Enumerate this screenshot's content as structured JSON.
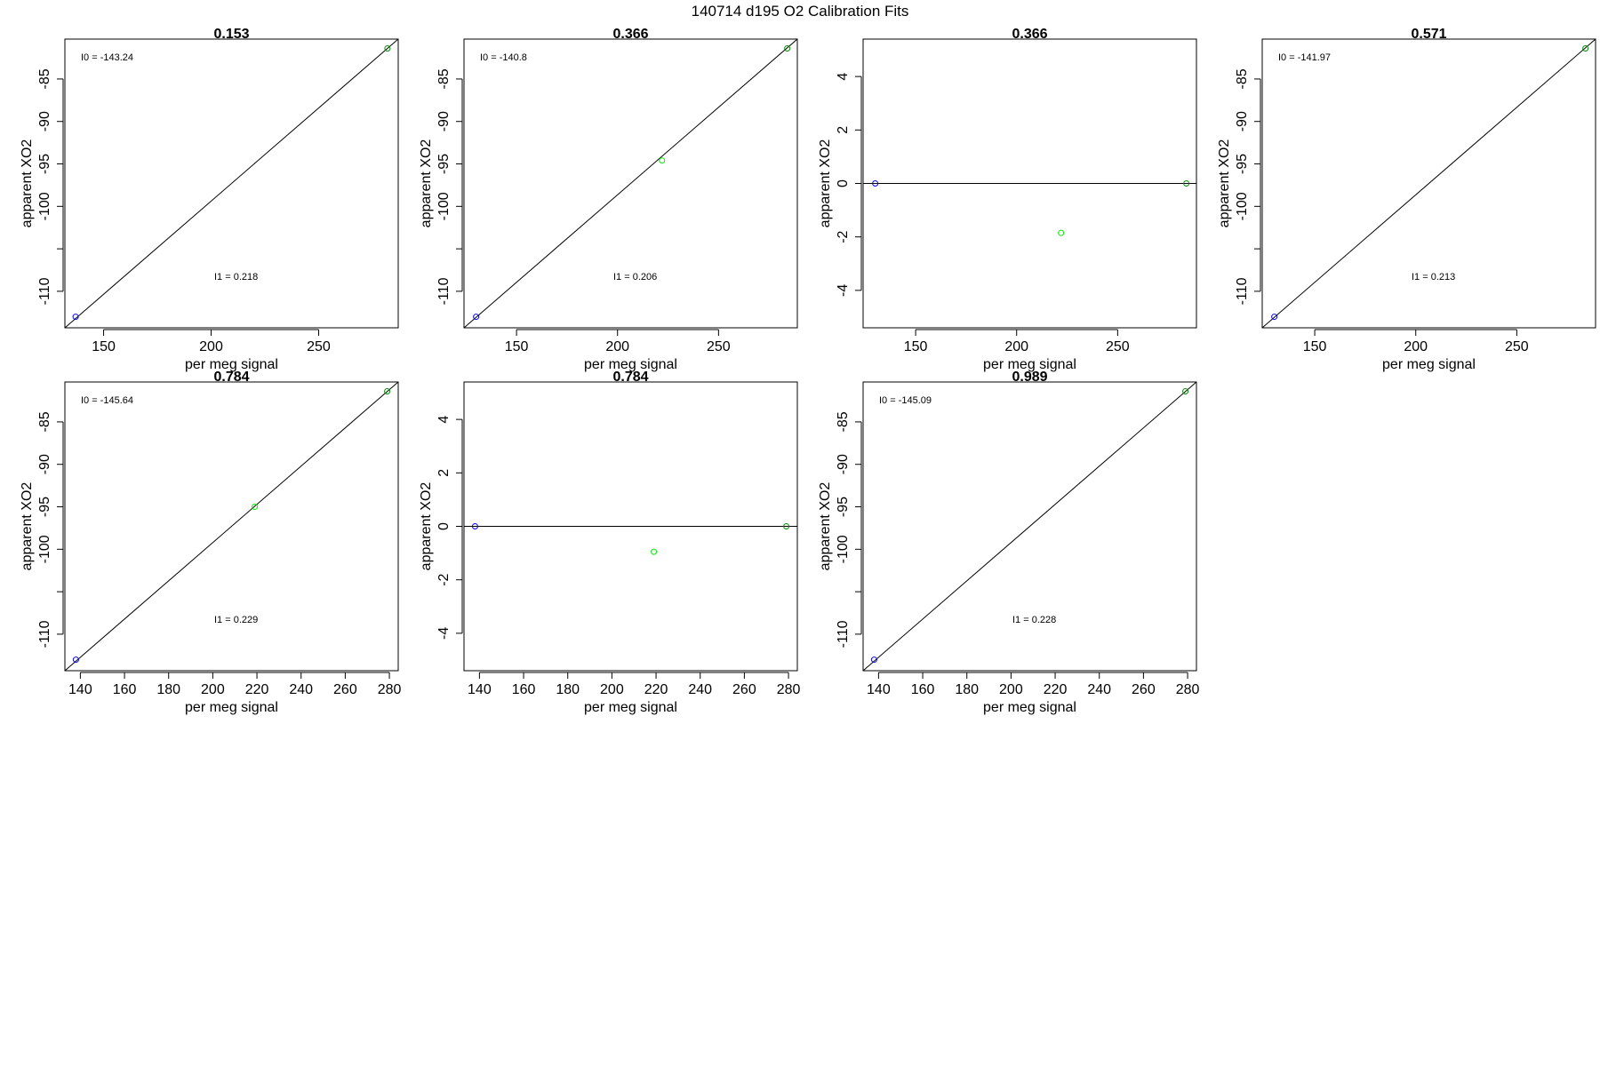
{
  "figure_title": "140714   d195   O2 Calibration Fits",
  "colors": {
    "low_point": "#0000ff",
    "mid_point": "#00ee00",
    "high_point": "#008b00",
    "line": "#000000"
  },
  "chart_data": [
    {
      "type": "scatter",
      "title": "0.153",
      "xlabel": "per meg signal",
      "ylabel": "apparent XO2",
      "xlim": [
        132,
        287
      ],
      "ylim": [
        -114.3,
        -80.3
      ],
      "xticks": [
        150,
        200,
        250
      ],
      "yticks": [
        -85,
        -90,
        -95,
        -100,
        -105,
        -110
      ],
      "ytick_labels": [
        "-85",
        "-90",
        "-95",
        "-100",
        "",
        "-110"
      ],
      "points": [
        {
          "x": 137,
          "y": -113.0,
          "color": "blue"
        },
        {
          "x": 282,
          "y": -81.4,
          "color": "darkgreen"
        }
      ],
      "fit_line": [
        [
          132,
          -114.3
        ],
        [
          287,
          -80.3
        ]
      ],
      "annotations": {
        "i0": "I0 =  -143.24",
        "i1": "I1 =  0.218"
      }
    },
    {
      "type": "scatter",
      "title": "0.366",
      "xlabel": "per meg signal",
      "ylabel": "apparent XO2",
      "xlim": [
        124,
        289
      ],
      "ylim": [
        -114.3,
        -80.3
      ],
      "xticks": [
        150,
        200,
        250
      ],
      "yticks": [
        -85,
        -90,
        -95,
        -100,
        -105,
        -110
      ],
      "ytick_labels": [
        "-85",
        "-90",
        "-95",
        "-100",
        "",
        "-110"
      ],
      "points": [
        {
          "x": 130,
          "y": -113.0,
          "color": "blue"
        },
        {
          "x": 222,
          "y": -94.6,
          "color": "green"
        },
        {
          "x": 284,
          "y": -81.4,
          "color": "darkgreen"
        }
      ],
      "fit_line": [
        [
          124,
          -114.3
        ],
        [
          289,
          -80.3
        ]
      ],
      "annotations": {
        "i0": "I0 =  -140.8",
        "i1": "I1 =  0.206"
      }
    },
    {
      "type": "scatter",
      "title": "0.366",
      "xlabel": "per meg signal",
      "ylabel": "apparent XO2",
      "xlim": [
        124,
        289
      ],
      "ylim": [
        -5.4,
        5.4
      ],
      "xticks": [
        150,
        200,
        250
      ],
      "yticks": [
        4,
        2,
        0,
        -2,
        -4
      ],
      "ytick_labels": [
        "4",
        "2",
        "0",
        "-2",
        "-4"
      ],
      "points": [
        {
          "x": 130,
          "y": 0.0,
          "color": "blue"
        },
        {
          "x": 222,
          "y": -1.85,
          "color": "green"
        },
        {
          "x": 284,
          "y": 0.0,
          "color": "darkgreen"
        }
      ],
      "fit_line": [
        [
          124,
          0
        ],
        [
          289,
          0
        ]
      ],
      "annotations": {}
    },
    {
      "type": "scatter",
      "title": "0.571",
      "xlabel": "per meg signal",
      "ylabel": "apparent XO2",
      "xlim": [
        124,
        289
      ],
      "ylim": [
        -114.3,
        -80.3
      ],
      "xticks": [
        150,
        200,
        250
      ],
      "yticks": [
        -85,
        -90,
        -95,
        -100,
        -105,
        -110
      ],
      "ytick_labels": [
        "-85",
        "-90",
        "-95",
        "-100",
        "",
        "-110"
      ],
      "points": [
        {
          "x": 130,
          "y": -113.0,
          "color": "blue"
        },
        {
          "x": 284,
          "y": -81.4,
          "color": "darkgreen"
        }
      ],
      "fit_line": [
        [
          124,
          -114.3
        ],
        [
          289,
          -80.3
        ]
      ],
      "annotations": {
        "i0": "I0 =  -141.97",
        "i1": "I1 =  0.213"
      }
    },
    {
      "type": "scatter",
      "title": "0.784",
      "xlabel": "per meg signal",
      "ylabel": "apparent XO2",
      "xlim": [
        133,
        284
      ],
      "ylim": [
        -114.3,
        -80.3
      ],
      "xticks": [
        140,
        160,
        180,
        200,
        220,
        240,
        260,
        280
      ],
      "yticks": [
        -85,
        -90,
        -95,
        -100,
        -105,
        -110
      ],
      "ytick_labels": [
        "-85",
        "-90",
        "-95",
        "-100",
        "",
        "-110"
      ],
      "points": [
        {
          "x": 138,
          "y": -113.0,
          "color": "blue"
        },
        {
          "x": 219,
          "y": -95.0,
          "color": "green"
        },
        {
          "x": 279,
          "y": -81.4,
          "color": "darkgreen"
        }
      ],
      "fit_line": [
        [
          133,
          -114.3
        ],
        [
          284,
          -80.3
        ]
      ],
      "annotations": {
        "i0": "I0 =  -145.64",
        "i1": "I1 =  0.229"
      }
    },
    {
      "type": "scatter",
      "title": "0.784",
      "xlabel": "per meg signal",
      "ylabel": "apparent XO2",
      "xlim": [
        133,
        284
      ],
      "ylim": [
        -5.4,
        5.4
      ],
      "xticks": [
        140,
        160,
        180,
        200,
        220,
        240,
        260,
        280
      ],
      "yticks": [
        4,
        2,
        0,
        -2,
        -4
      ],
      "ytick_labels": [
        "4",
        "2",
        "0",
        "-2",
        "-4"
      ],
      "points": [
        {
          "x": 138,
          "y": 0.0,
          "color": "blue"
        },
        {
          "x": 219,
          "y": -0.95,
          "color": "green"
        },
        {
          "x": 279,
          "y": 0.0,
          "color": "darkgreen"
        }
      ],
      "fit_line": [
        [
          133,
          0
        ],
        [
          284,
          0
        ]
      ],
      "annotations": {}
    },
    {
      "type": "scatter",
      "title": "0.989",
      "xlabel": "per meg signal",
      "ylabel": "apparent XO2",
      "xlim": [
        133,
        284
      ],
      "ylim": [
        -114.3,
        -80.3
      ],
      "xticks": [
        140,
        160,
        180,
        200,
        220,
        240,
        260,
        280
      ],
      "yticks": [
        -85,
        -90,
        -95,
        -100,
        -105,
        -110
      ],
      "ytick_labels": [
        "-85",
        "-90",
        "-95",
        "-100",
        "",
        "-110"
      ],
      "points": [
        {
          "x": 138,
          "y": -113.0,
          "color": "blue"
        },
        {
          "x": 279,
          "y": -81.4,
          "color": "darkgreen"
        }
      ],
      "fit_line": [
        [
          133,
          -114.3
        ],
        [
          284,
          -80.3
        ]
      ],
      "annotations": {
        "i0": "I0 =  -145.09",
        "i1": "I1 =  0.228"
      }
    }
  ]
}
